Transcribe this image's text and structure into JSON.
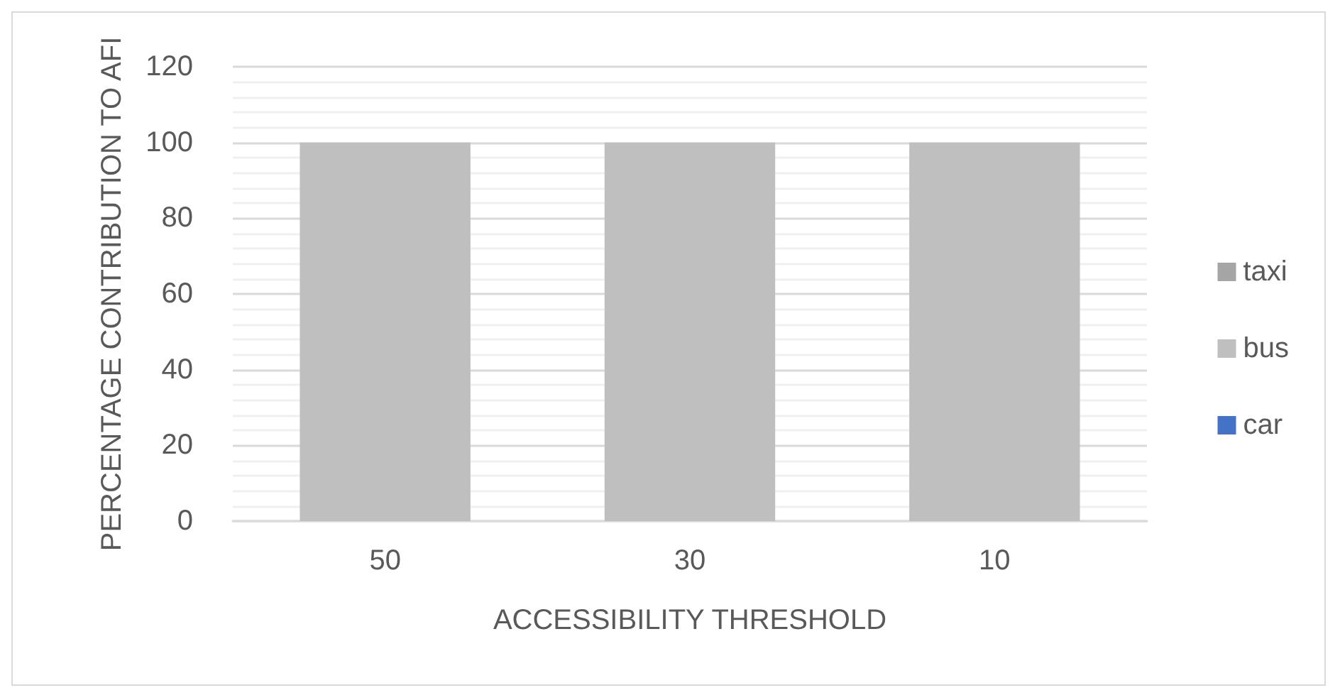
{
  "chart_data": {
    "type": "bar",
    "stacked": true,
    "xlabel": "ACCESSIBILITY THRESHOLD",
    "ylabel": "PERCENTAGE CONTRIBUTION TO AFI",
    "categories": [
      "50",
      "30",
      "10"
    ],
    "series": [
      {
        "name": "car",
        "color": "#4472c4",
        "values": [
          0,
          0,
          0
        ]
      },
      {
        "name": "bus",
        "color": "#bfbfbf",
        "values": [
          100,
          100,
          100
        ]
      },
      {
        "name": "taxi",
        "color": "#a5a5a5",
        "values": [
          0,
          0,
          0
        ]
      }
    ],
    "ylim": [
      0,
      120
    ],
    "yticks": [
      0,
      20,
      40,
      60,
      80,
      100,
      120
    ],
    "grid": "y",
    "legend": "right"
  }
}
